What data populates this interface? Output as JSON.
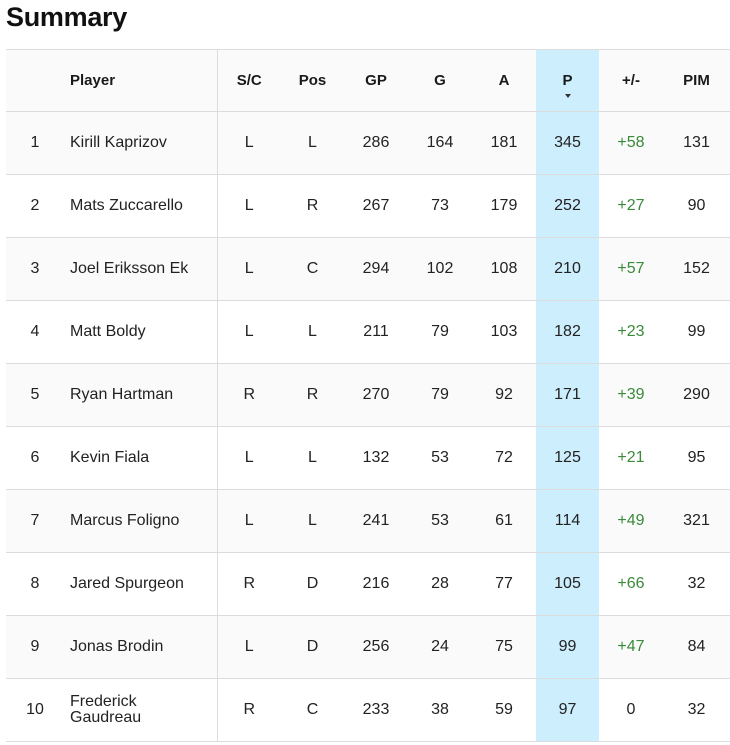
{
  "title": "Summary",
  "colors": {
    "sorted_column_bg": "#cdeefc",
    "plus_minus_positive": "#3a8a3a",
    "border": "#dcdcdc",
    "row_alt": "#fafafa"
  },
  "table": {
    "sorted_by": "P",
    "sort_icon": "sort-desc-icon",
    "headers": {
      "rank": "",
      "player": "Player",
      "sc": "S/C",
      "pos": "Pos",
      "gp": "GP",
      "g": "G",
      "a": "A",
      "p": "P",
      "pm": "+/-",
      "pim": "PIM"
    },
    "rows": [
      {
        "rank": "1",
        "player": "Kirill Kaprizov",
        "sc": "L",
        "pos": "L",
        "gp": "286",
        "g": "164",
        "a": "181",
        "p": "345",
        "pm": "+58",
        "pim": "131"
      },
      {
        "rank": "2",
        "player": "Mats Zuccarello",
        "sc": "L",
        "pos": "R",
        "gp": "267",
        "g": "73",
        "a": "179",
        "p": "252",
        "pm": "+27",
        "pim": "90"
      },
      {
        "rank": "3",
        "player": "Joel Eriksson Ek",
        "sc": "L",
        "pos": "C",
        "gp": "294",
        "g": "102",
        "a": "108",
        "p": "210",
        "pm": "+57",
        "pim": "152"
      },
      {
        "rank": "4",
        "player": "Matt Boldy",
        "sc": "L",
        "pos": "L",
        "gp": "211",
        "g": "79",
        "a": "103",
        "p": "182",
        "pm": "+23",
        "pim": "99"
      },
      {
        "rank": "5",
        "player": "Ryan Hartman",
        "sc": "R",
        "pos": "R",
        "gp": "270",
        "g": "79",
        "a": "92",
        "p": "171",
        "pm": "+39",
        "pim": "290"
      },
      {
        "rank": "6",
        "player": "Kevin Fiala",
        "sc": "L",
        "pos": "L",
        "gp": "132",
        "g": "53",
        "a": "72",
        "p": "125",
        "pm": "+21",
        "pim": "95"
      },
      {
        "rank": "7",
        "player": "Marcus Foligno",
        "sc": "L",
        "pos": "L",
        "gp": "241",
        "g": "53",
        "a": "61",
        "p": "114",
        "pm": "+49",
        "pim": "321"
      },
      {
        "rank": "8",
        "player": "Jared Spurgeon",
        "sc": "R",
        "pos": "D",
        "gp": "216",
        "g": "28",
        "a": "77",
        "p": "105",
        "pm": "+66",
        "pim": "32"
      },
      {
        "rank": "9",
        "player": "Jonas Brodin",
        "sc": "L",
        "pos": "D",
        "gp": "256",
        "g": "24",
        "a": "75",
        "p": "99",
        "pm": "+47",
        "pim": "84"
      },
      {
        "rank": "10",
        "player": "Frederick Gaudreau",
        "player_lines": [
          "Frederick",
          "Gaudreau"
        ],
        "sc": "R",
        "pos": "C",
        "gp": "233",
        "g": "38",
        "a": "59",
        "p": "97",
        "pm": "0",
        "pim": "32"
      }
    ]
  }
}
